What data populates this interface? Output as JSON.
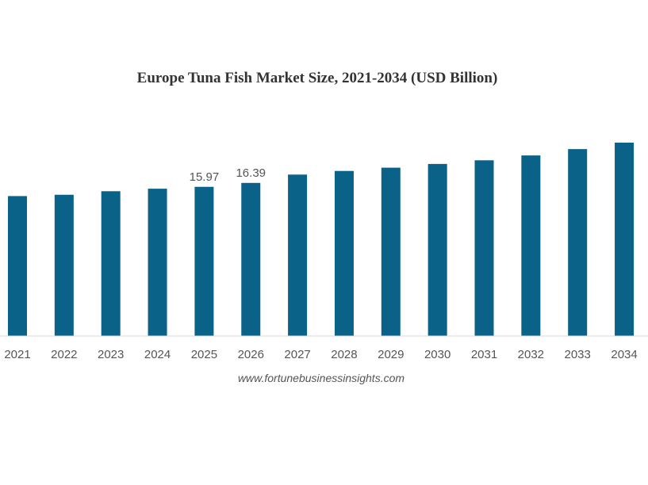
{
  "chart_data": {
    "type": "bar",
    "title": "Europe Tuna Fish Market Size, 2021-2034 (USD Billion)",
    "xlabel": "",
    "ylabel": "",
    "categories": [
      "2021",
      "2022",
      "2023",
      "2024",
      "2025",
      "2026",
      "2027",
      "2028",
      "2029",
      "2030",
      "2031",
      "2032",
      "2033",
      "2034"
    ],
    "values": [
      14.98,
      15.12,
      15.5,
      15.77,
      15.97,
      16.39,
      17.28,
      17.67,
      18.02,
      18.42,
      18.81,
      19.33,
      20.01,
      20.7
    ],
    "data_labels": [
      {
        "category": "2025",
        "text": "15.97"
      },
      {
        "category": "2026",
        "text": "16.39"
      }
    ],
    "ylim": [
      0,
      21
    ],
    "grid": false,
    "bar_color": "#0a6289"
  },
  "source_text": "www.fortunebusinessinsights.com"
}
